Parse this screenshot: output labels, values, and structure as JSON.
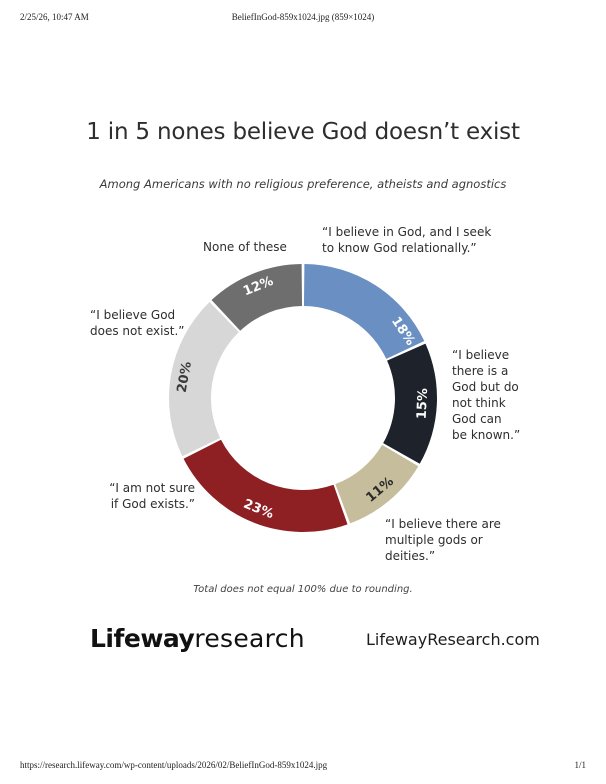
{
  "print": {
    "datetime": "2/25/26, 10:47 AM",
    "doc_title": "BeliefInGod-859x1024.jpg (859×1024)",
    "url": "https://research.lifeway.com/wp-content/uploads/2026/02/BeliefInGod-859x1024.jpg",
    "page": "1/1"
  },
  "chart_data": {
    "type": "pie",
    "style": "donut",
    "title": "1 in 5 nones believe God doesn’t exist",
    "subtitle": "Among Americans with no religious preference, atheists and agnostics",
    "note": "Total does not equal 100% due to rounding.",
    "slices": [
      {
        "value": 18,
        "label": "18%",
        "callout": [
          "“I believe in God, and I seek",
          "to know God relationally.”"
        ],
        "color": "#6a8fc2",
        "text_color": "#ffffff"
      },
      {
        "value": 15,
        "label": "15%",
        "callout": [
          "“I believe",
          "there is a",
          "God but do",
          "not think",
          "God can",
          "be known.”"
        ],
        "color": "#1d222b",
        "text_color": "#ffffff"
      },
      {
        "value": 11,
        "label": "11%",
        "callout": [
          "“I believe there are",
          "multiple gods or",
          "deities.”"
        ],
        "color": "#c6bd9c",
        "text_color": "#2a2a2a"
      },
      {
        "value": 23,
        "label": "23%",
        "callout": [
          "“I am not sure",
          "if God exists.”"
        ],
        "color": "#8e1f23",
        "text_color": "#ffffff"
      },
      {
        "value": 20,
        "label": "20%",
        "callout": [
          "“I believe God",
          "does not exist.”"
        ],
        "color": "#d7d7d7",
        "text_color": "#3a3a3a"
      },
      {
        "value": 12,
        "label": "12%",
        "callout": [
          "None of these"
        ],
        "color": "#6e6e6e",
        "text_color": "#ffffff"
      }
    ]
  },
  "brand": {
    "logo_bold": "Lifeway",
    "logo_light": "research",
    "site": "LifewayResearch.com"
  }
}
